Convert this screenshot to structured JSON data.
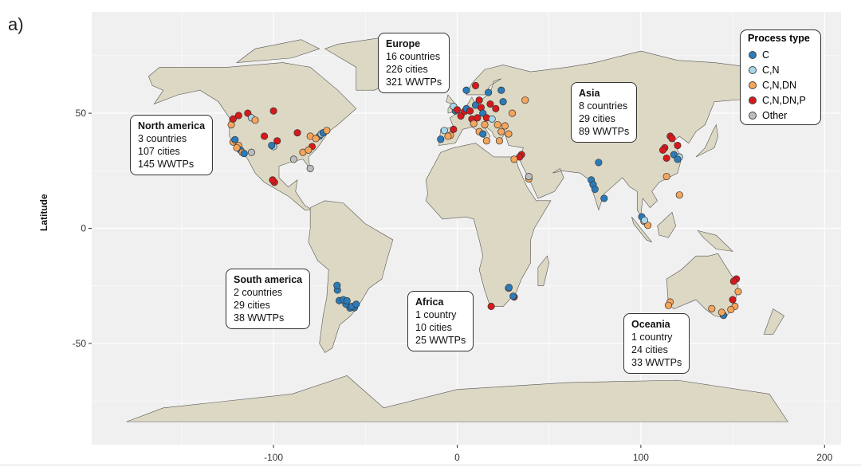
{
  "panel_label": "a)",
  "chart_data": {
    "type": "scatter",
    "subtype": "world map",
    "xlabel": "",
    "ylabel": "Latitude",
    "xlim": [
      -199,
      209
    ],
    "ylim": [
      -94,
      94
    ],
    "x_ticks": [
      -100,
      0,
      100,
      200
    ],
    "y_ticks": [
      -50,
      0,
      50
    ],
    "grid": true,
    "legend": {
      "title": "Process type",
      "placement": "top-right",
      "entries": [
        {
          "label": "C",
          "color": "#2b7bba"
        },
        {
          "label": "C,N",
          "color": "#a6d8ea"
        },
        {
          "label": "C,N,DN",
          "color": "#f5a55c"
        },
        {
          "label": "C,N,DN,P",
          "color": "#d7191c"
        },
        {
          "label": "Other",
          "color": "#bdbdbd"
        }
      ]
    },
    "points": [
      {
        "lon": -122,
        "lat": 37.5,
        "type": "C,N,DN"
      },
      {
        "lon": -121,
        "lat": 38.5,
        "type": "C"
      },
      {
        "lon": -119,
        "lat": 36,
        "type": "C,N,DN"
      },
      {
        "lon": -118,
        "lat": 34,
        "type": "C"
      },
      {
        "lon": -117,
        "lat": 33,
        "type": "C,N,DN"
      },
      {
        "lon": -116,
        "lat": 32.5,
        "type": "C"
      },
      {
        "lon": -120,
        "lat": 35,
        "type": "C,N,DN"
      },
      {
        "lon": -123,
        "lat": 45,
        "type": "C,N,DN"
      },
      {
        "lon": -122,
        "lat": 47.5,
        "type": "C,N,DN,P"
      },
      {
        "lon": -119,
        "lat": 49,
        "type": "C,N,DN,P"
      },
      {
        "lon": -114,
        "lat": 50,
        "type": "C,N,DN,P"
      },
      {
        "lon": -112,
        "lat": 48,
        "type": "C,N"
      },
      {
        "lon": -110,
        "lat": 47,
        "type": "C,N,DN"
      },
      {
        "lon": -100,
        "lat": 51,
        "type": "C,N,DN,P"
      },
      {
        "lon": -105,
        "lat": 40,
        "type": "C,N,DN,P"
      },
      {
        "lon": -112,
        "lat": 33,
        "type": "Other"
      },
      {
        "lon": -100,
        "lat": 35.5,
        "type": "C,N"
      },
      {
        "lon": -98,
        "lat": 38,
        "type": "C,N,DN,P"
      },
      {
        "lon": -101,
        "lat": 36,
        "type": "C"
      },
      {
        "lon": -87,
        "lat": 41.5,
        "type": "C,N,DN,P"
      },
      {
        "lon": -84,
        "lat": 33,
        "type": "C,N,DN"
      },
      {
        "lon": -80,
        "lat": 40,
        "type": "C,N,DN"
      },
      {
        "lon": -75,
        "lat": 40,
        "type": "C"
      },
      {
        "lon": -74,
        "lat": 41,
        "type": "C,N"
      },
      {
        "lon": -73,
        "lat": 41.5,
        "type": "C"
      },
      {
        "lon": -71,
        "lat": 42.5,
        "type": "C,N,DN"
      },
      {
        "lon": -77,
        "lat": 39,
        "type": "C,N,DN"
      },
      {
        "lon": -79,
        "lat": 35.5,
        "type": "C,N,DN,P"
      },
      {
        "lon": -81,
        "lat": 34,
        "type": "C,N,DN"
      },
      {
        "lon": -80,
        "lat": 26,
        "type": "Other"
      },
      {
        "lon": -99.5,
        "lat": 20,
        "type": "C,N,DN,P"
      },
      {
        "lon": -100.5,
        "lat": 21,
        "type": "C,N,DN,P"
      },
      {
        "lon": -89,
        "lat": 30,
        "type": "Other"
      },
      {
        "lon": -9,
        "lat": 38.7,
        "type": "C"
      },
      {
        "lon": -3.7,
        "lat": 40.4,
        "type": "C,N,DN"
      },
      {
        "lon": -5,
        "lat": 40,
        "type": "C,N,DN"
      },
      {
        "lon": -1,
        "lat": 51,
        "type": "C"
      },
      {
        "lon": -2,
        "lat": 53,
        "type": "C,N"
      },
      {
        "lon": 0,
        "lat": 51.5,
        "type": "C,N,DN,P"
      },
      {
        "lon": 2,
        "lat": 48.8,
        "type": "C,N,DN,P"
      },
      {
        "lon": 4,
        "lat": 50.8,
        "type": "C,N,DN,P"
      },
      {
        "lon": 5,
        "lat": 52,
        "type": "C"
      },
      {
        "lon": 7,
        "lat": 51,
        "type": "C,N,DN,P"
      },
      {
        "lon": 8,
        "lat": 47.5,
        "type": "C,N,DN,P"
      },
      {
        "lon": 9,
        "lat": 45.5,
        "type": "C,N,DN"
      },
      {
        "lon": 10,
        "lat": 53.5,
        "type": "C"
      },
      {
        "lon": 11,
        "lat": 48,
        "type": "C,N,DN,P"
      },
      {
        "lon": 12,
        "lat": 55.7,
        "type": "C,N,DN,P"
      },
      {
        "lon": 13,
        "lat": 52.5,
        "type": "C,N,DN,P"
      },
      {
        "lon": 14,
        "lat": 50,
        "type": "C"
      },
      {
        "lon": 16,
        "lat": 48,
        "type": "C,N,DN,P"
      },
      {
        "lon": 17,
        "lat": 59,
        "type": "C"
      },
      {
        "lon": 18,
        "lat": 54,
        "type": "C,N,DN,P"
      },
      {
        "lon": 19,
        "lat": 47.5,
        "type": "C,N"
      },
      {
        "lon": 21,
        "lat": 52,
        "type": "C,N,DN,P"
      },
      {
        "lon": 24,
        "lat": 60,
        "type": "C"
      },
      {
        "lon": 25,
        "lat": 55,
        "type": "C"
      },
      {
        "lon": 10,
        "lat": 62,
        "type": "C,N,DN,P"
      },
      {
        "lon": 5,
        "lat": 60,
        "type": "C"
      },
      {
        "lon": 12,
        "lat": 42,
        "type": "C,N,DN"
      },
      {
        "lon": 14,
        "lat": 41,
        "type": "C"
      },
      {
        "lon": 15,
        "lat": 45,
        "type": "C,N,DN"
      },
      {
        "lon": 22,
        "lat": 45,
        "type": "C,N,DN"
      },
      {
        "lon": 24,
        "lat": 42,
        "type": "C,N,DN"
      },
      {
        "lon": 16,
        "lat": 38,
        "type": "C,N,DN"
      },
      {
        "lon": 23,
        "lat": 38,
        "type": "C,N,DN"
      },
      {
        "lon": 26,
        "lat": 44.5,
        "type": "C,N,DN"
      },
      {
        "lon": 30,
        "lat": 50,
        "type": "C,N,DN"
      },
      {
        "lon": 37,
        "lat": 55.7,
        "type": "C,N,DN"
      },
      {
        "lon": 28,
        "lat": 41,
        "type": "C,N,DN"
      },
      {
        "lon": -7,
        "lat": 42.5,
        "type": "C,N"
      },
      {
        "lon": -2,
        "lat": 43,
        "type": "C,N,DN,P"
      },
      {
        "lon": 35,
        "lat": 32,
        "type": "C,N,DN,P"
      },
      {
        "lon": 34,
        "lat": 31,
        "type": "C,N,DN,P"
      },
      {
        "lon": 31,
        "lat": 30,
        "type": "C,N,DN"
      },
      {
        "lon": 39,
        "lat": 21.5,
        "type": "C,N,DN"
      },
      {
        "lon": 39,
        "lat": 22.5,
        "type": "Other"
      },
      {
        "lon": 77,
        "lat": 28.6,
        "type": "C"
      },
      {
        "lon": 73,
        "lat": 21,
        "type": "C"
      },
      {
        "lon": 74,
        "lat": 19,
        "type": "C"
      },
      {
        "lon": 75,
        "lat": 17,
        "type": "C"
      },
      {
        "lon": 80,
        "lat": 13,
        "type": "C"
      },
      {
        "lon": 116,
        "lat": 40,
        "type": "C,N,DN,P"
      },
      {
        "lon": 117,
        "lat": 39,
        "type": "C,N,DN,P"
      },
      {
        "lon": 113,
        "lat": 35,
        "type": "C,N,DN,P"
      },
      {
        "lon": 112,
        "lat": 34,
        "type": "C,N,DN,P"
      },
      {
        "lon": 114,
        "lat": 30.5,
        "type": "C,N,DN,P"
      },
      {
        "lon": 120,
        "lat": 36,
        "type": "C,N,DN,P"
      },
      {
        "lon": 118,
        "lat": 32,
        "type": "C"
      },
      {
        "lon": 121,
        "lat": 31,
        "type": "C,N"
      },
      {
        "lon": 120,
        "lat": 30,
        "type": "C"
      },
      {
        "lon": 114,
        "lat": 22.5,
        "type": "C,N,DN"
      },
      {
        "lon": 121,
        "lat": 14.5,
        "type": "C,N,DN"
      },
      {
        "lon": 101.7,
        "lat": 3,
        "type": "C,N,DN"
      },
      {
        "lon": 103.8,
        "lat": 1.3,
        "type": "C,N,DN"
      },
      {
        "lon": 100.5,
        "lat": 5,
        "type": "C"
      },
      {
        "lon": 102,
        "lat": 3.5,
        "type": "C,N"
      },
      {
        "lon": -56,
        "lat": -34.5,
        "type": "C"
      },
      {
        "lon": -58.4,
        "lat": -34.6,
        "type": "C"
      },
      {
        "lon": -60.6,
        "lat": -32.9,
        "type": "C"
      },
      {
        "lon": -64.2,
        "lat": -31.4,
        "type": "C"
      },
      {
        "lon": -62,
        "lat": -31,
        "type": "C"
      },
      {
        "lon": -65.2,
        "lat": -26.8,
        "type": "C"
      },
      {
        "lon": -65.4,
        "lat": -24.8,
        "type": "C"
      },
      {
        "lon": -57.5,
        "lat": -34,
        "type": "C"
      },
      {
        "lon": -60,
        "lat": -31.5,
        "type": "C"
      },
      {
        "lon": -55,
        "lat": -33,
        "type": "C"
      },
      {
        "lon": 28,
        "lat": -26,
        "type": "Other"
      },
      {
        "lon": 28.2,
        "lat": -25.7,
        "type": "C"
      },
      {
        "lon": 31,
        "lat": -29.8,
        "type": "C,N,DN,P"
      },
      {
        "lon": 30.5,
        "lat": -29.5,
        "type": "C"
      },
      {
        "lon": 18.5,
        "lat": -33.9,
        "type": "C,N,DN,P"
      },
      {
        "lon": 153,
        "lat": -27.5,
        "type": "C,N,DN"
      },
      {
        "lon": 152,
        "lat": -22,
        "type": "C,N,DN,P"
      },
      {
        "lon": 150.5,
        "lat": -23,
        "type": "C,N,DN,P"
      },
      {
        "lon": 151.2,
        "lat": -33.9,
        "type": "C,N,DN"
      },
      {
        "lon": 150,
        "lat": -31,
        "type": "C,N,DN,P"
      },
      {
        "lon": 145,
        "lat": -37.8,
        "type": "C"
      },
      {
        "lon": 144,
        "lat": -36.5,
        "type": "C,N,DN"
      },
      {
        "lon": 138.6,
        "lat": -34.9,
        "type": "C,N,DN"
      },
      {
        "lon": 149,
        "lat": -35.3,
        "type": "C,N,DN"
      },
      {
        "lon": 115.9,
        "lat": -32,
        "type": "C,N,DN"
      },
      {
        "lon": 115,
        "lat": -33.5,
        "type": "C,N,DN"
      }
    ]
  },
  "annotations": [
    {
      "title": "North america",
      "lines": [
        "3 countries",
        "107 cities",
        "145 WWTPs"
      ]
    },
    {
      "title": "Europe",
      "lines": [
        "16 countries",
        "226 cities",
        "321 WWTPs"
      ]
    },
    {
      "title": "Asia",
      "lines": [
        "8 countries",
        "29 cities",
        "89 WWTPs"
      ]
    },
    {
      "title": "South america",
      "lines": [
        "2 countries",
        "29 cities",
        "38 WWTPs"
      ]
    },
    {
      "title": "Africa",
      "lines": [
        "1 country",
        "10 cities",
        "25 WWTPs"
      ]
    },
    {
      "title": "Oceania",
      "lines": [
        "1 country",
        "24 cities",
        "33 WWTPs"
      ]
    }
  ],
  "colors": {
    "panel": "#f0f0f0",
    "land": "#dcd8c4",
    "border": "#555555"
  }
}
